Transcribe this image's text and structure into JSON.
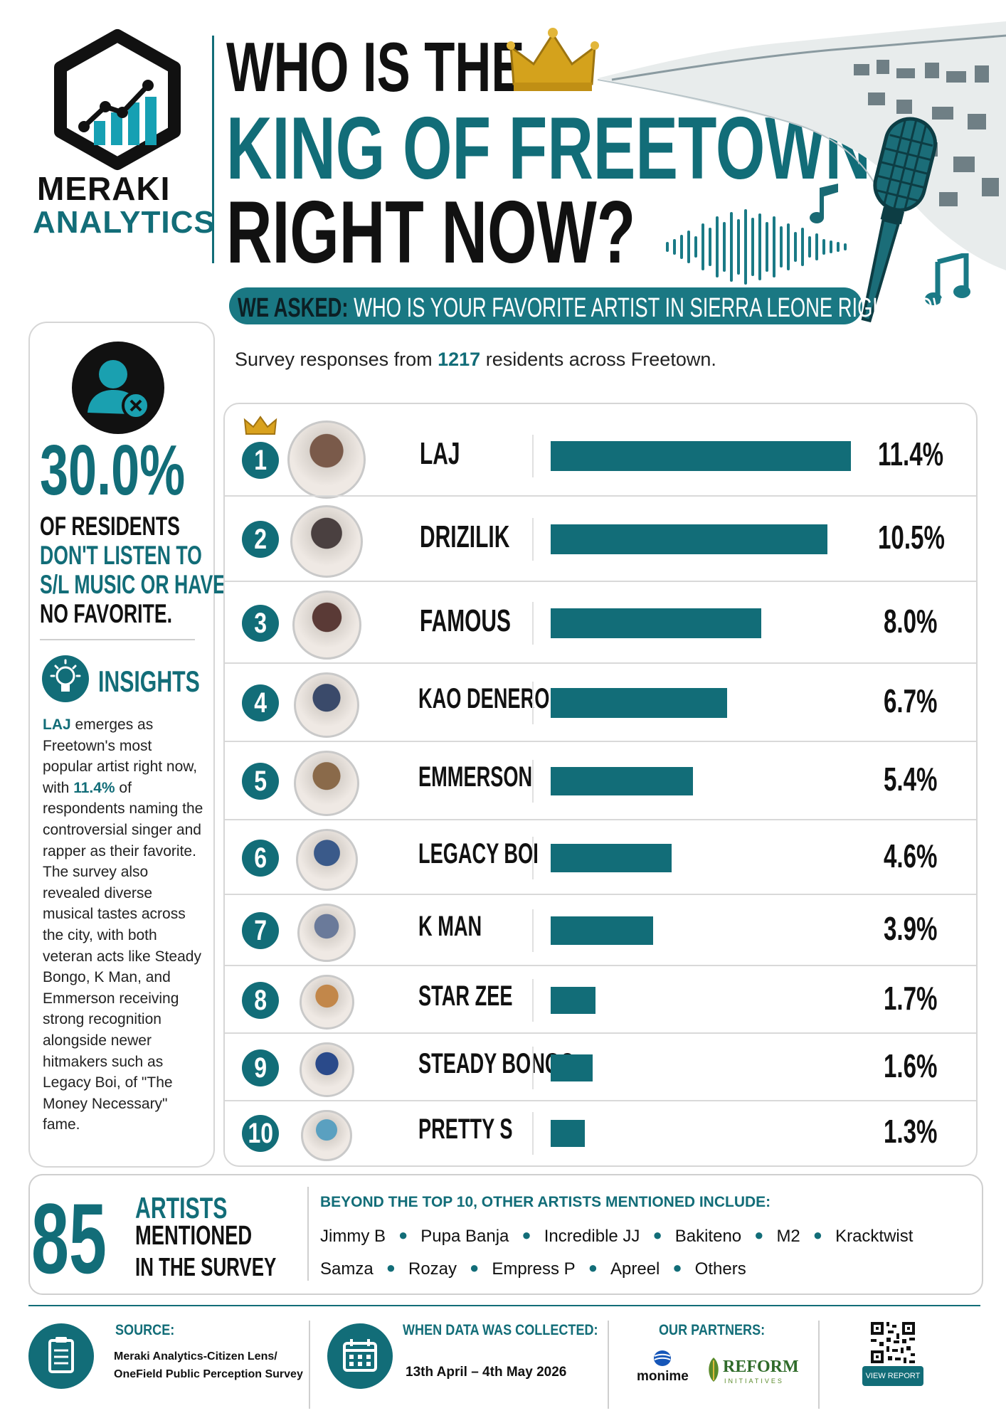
{
  "brand": {
    "line1": "MERAKI",
    "line2": "ANALYTICS"
  },
  "header": {
    "title_line1": "WHO IS THE",
    "title_line2": "KING OF FREETOWN",
    "title_line3": "RIGHT NOW?",
    "asked_label": "WE ASKED:",
    "asked_question": "WHO IS YOUR FAVORITE ARTIST IN SIERRA LEONE RIGHT NOW?"
  },
  "survey": {
    "prefix": "Survey responses from",
    "count": "1217",
    "suffix": "residents across Freetown."
  },
  "left_panel": {
    "stat_value": "30.0%",
    "stat_line1": "OF RESIDENTS",
    "stat_line2": "DON'T LISTEN TO",
    "stat_line3": "S/L MUSIC OR HAVE",
    "stat_line4": "NO FAVORITE.",
    "insights_title": "INSIGHTS",
    "insights_p1": "LAJ",
    "insights_p2": " emerges as Freetown's most popular artist right now, with ",
    "insights_p3": "11.4%",
    "insights_p4": " of respondents naming the controversial singer and rapper as their favorite. The survey also revealed diverse musical tastes across the city, with both veteran acts like Steady Bongo, K Man, and Emmerson receiving strong recognition alongside newer hitmakers such as Legacy Boi, of \"The Money Necessary\" fame."
  },
  "chart_data": {
    "type": "bar",
    "orientation": "horizontal",
    "categories": [
      "LAJ",
      "DRIZILIK",
      "FAMOUS",
      "KAO DENERO",
      "EMMERSON",
      "LEGACY BOI",
      "K MAN",
      "STAR ZEE",
      "STEADY BONGO",
      "PRETTY S"
    ],
    "ranks": [
      "1",
      "2",
      "3",
      "4",
      "5",
      "6",
      "7",
      "8",
      "9",
      "10"
    ],
    "values": [
      11.4,
      10.5,
      8.0,
      6.7,
      5.4,
      4.6,
      3.9,
      1.7,
      1.6,
      1.3
    ],
    "labels": [
      "11.4%",
      "10.5%",
      "8.0%",
      "6.7%",
      "5.4%",
      "4.6%",
      "3.9%",
      "1.7%",
      "1.6%",
      "1.3%"
    ],
    "unit": "%",
    "bar_color": "#126d78",
    "xlim": [
      0,
      11.4
    ]
  },
  "artists_box": {
    "number": "85",
    "label1": "ARTISTS",
    "label2": "MENTIONED",
    "label3": "IN THE SURVEY",
    "beyond_title": "BEYOND THE TOP 10, OTHER ARTISTS MENTIONED INCLUDE:",
    "row1": [
      "Jimmy B",
      "Pupa Banja",
      "Incredible JJ",
      "Bakiteno",
      "M2",
      "Kracktwist"
    ],
    "row2": [
      "Samza",
      "Rozay",
      "Empress P",
      "Apreel",
      "Others"
    ]
  },
  "footer": {
    "source_label": "SOURCE:",
    "source_line1": "Meraki Analytics-Citizen Lens/",
    "source_line2": "OneField Public Perception Survey",
    "when_label": "WHEN DATA WAS COLLECTED:",
    "when_value": "13th April – 4th May 2026",
    "partners_label": "OUR PARTNERS:",
    "partner1": "monime",
    "partner2": "REFORM",
    "partner2_sub": "INITIATIVES",
    "view_report": "VIEW REPORT"
  },
  "colors": {
    "accent": "#126d78",
    "text": "#111111"
  },
  "icons": [
    "logo-chart-icon",
    "crown-icon",
    "microphone-icon",
    "music-note-icon",
    "user-x-icon",
    "lightbulb-icon",
    "clipboard-icon",
    "calendar-icon",
    "qr-code-icon"
  ]
}
